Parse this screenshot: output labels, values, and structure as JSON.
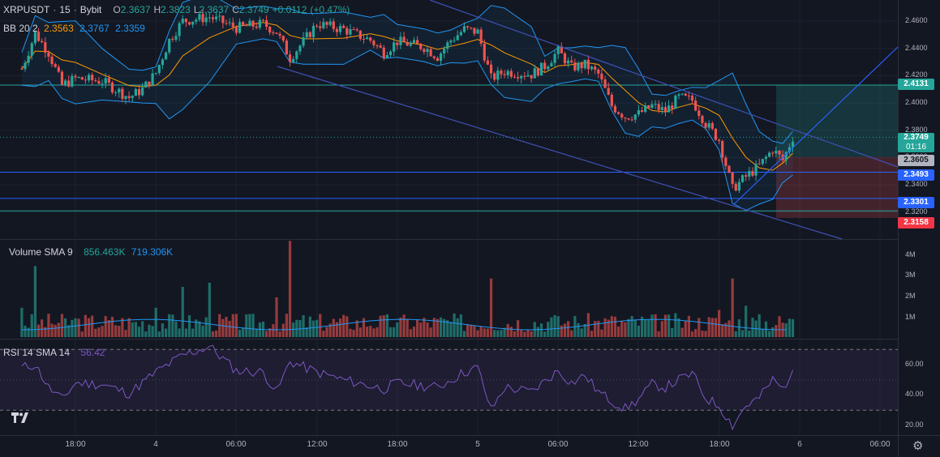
{
  "header": {
    "symbol": "XRPUSDT",
    "interval": "15",
    "exchange": "Bybit",
    "sep": "·",
    "ohlc": {
      "o_label": "O",
      "o": "2.3637",
      "h_label": "H",
      "h": "2.3823",
      "l_label": "L",
      "l": "2.3637",
      "c_label": "C",
      "c": "2.3749",
      "change": "+0.0112",
      "change_pct": "(+0.47%)"
    }
  },
  "bb_legend": {
    "name": "BB 20 2",
    "basis": "2.3563",
    "upper": "2.3767",
    "lower": "2.3359"
  },
  "volume_legend": {
    "name": "Volume SMA 9",
    "value": "856.463K",
    "sma": "719.306K"
  },
  "rsi_legend": {
    "name": "RSI 14 SMA 14",
    "value": "56.42"
  },
  "price_axis": [
    "2.4600",
    "2.4400",
    "2.4200",
    "2.4000",
    "2.3800",
    "2.3600",
    "2.3400",
    "2.3200"
  ],
  "volume_axis": [
    "4M",
    "3M",
    "2M",
    "1M"
  ],
  "rsi_axis": [
    "60.00",
    "40.00",
    "20.00"
  ],
  "time_axis": [
    "18:00",
    "4",
    "06:00",
    "12:00",
    "18:00",
    "5",
    "06:00",
    "12:00",
    "18:00",
    "6",
    "06:00"
  ],
  "price_tags": {
    "tp": "2.4131",
    "last": "2.3749",
    "countdown": "01:16",
    "entry": "2.3605",
    "support1": "2.3493",
    "support2": "2.3301",
    "sl": "2.3158"
  },
  "colors": {
    "bg": "#131722",
    "up": "#26a69a",
    "down": "#ef5350",
    "basis": "#ff9800",
    "band": "#2196f3",
    "rsi": "#7e57c2",
    "grid": "#1e222d",
    "hline": "#2962ff"
  },
  "chart_data": [
    {
      "type": "candlestick",
      "title": "XRPUSDT · 15 · Bybit",
      "interval_minutes": 15,
      "ylim": [
        2.305,
        2.47
      ],
      "x_tick_labels": [
        "18:00",
        "4",
        "06:00",
        "12:00",
        "18:00",
        "5",
        "06:00",
        "12:00",
        "18:00",
        "6",
        "06:00"
      ],
      "close_trace": [
        {
          "t": "Feb 3 14:00",
          "c": 2.425
        },
        {
          "t": "Feb 3 15:00",
          "c": 2.451
        },
        {
          "t": "Feb 3 16:00",
          "c": 2.437
        },
        {
          "t": "Feb 3 17:00",
          "c": 2.413
        },
        {
          "t": "Feb 3 18:00",
          "c": 2.418
        },
        {
          "t": "Feb 3 20:00",
          "c": 2.416
        },
        {
          "t": "Feb 3 22:00",
          "c": 2.404
        },
        {
          "t": "Feb 3 23:00",
          "c": 2.41
        },
        {
          "t": "Feb 4 00:00",
          "c": 2.422
        },
        {
          "t": "Feb 4 01:00",
          "c": 2.446
        },
        {
          "t": "Feb 4 02:00",
          "c": 2.46
        },
        {
          "t": "Feb 4 04:00",
          "c": 2.463
        },
        {
          "t": "Feb 4 06:00",
          "c": 2.455
        },
        {
          "t": "Feb 4 08:00",
          "c": 2.458
        },
        {
          "t": "Feb 4 09:00",
          "c": 2.452
        },
        {
          "t": "Feb 4 10:00",
          "c": 2.433
        },
        {
          "t": "Feb 4 11:00",
          "c": 2.445
        },
        {
          "t": "Feb 4 12:00",
          "c": 2.458
        },
        {
          "t": "Feb 4 14:00",
          "c": 2.454
        },
        {
          "t": "Feb 4 16:00",
          "c": 2.446
        },
        {
          "t": "Feb 4 17:00",
          "c": 2.437
        },
        {
          "t": "Feb 4 18:00",
          "c": 2.445
        },
        {
          "t": "Feb 4 20:00",
          "c": 2.441
        },
        {
          "t": "Feb 4 21:00",
          "c": 2.434
        },
        {
          "t": "Feb 4 22:00",
          "c": 2.446
        },
        {
          "t": "Feb 4 23:00",
          "c": 2.454
        },
        {
          "t": "Feb 5 00:00",
          "c": 2.452
        },
        {
          "t": "Feb 5 01:00",
          "c": 2.418
        },
        {
          "t": "Feb 5 02:00",
          "c": 2.423
        },
        {
          "t": "Feb 5 04:00",
          "c": 2.421
        },
        {
          "t": "Feb 5 05:00",
          "c": 2.427
        },
        {
          "t": "Feb 5 06:00",
          "c": 2.438
        },
        {
          "t": "Feb 5 07:00",
          "c": 2.426
        },
        {
          "t": "Feb 5 08:00",
          "c": 2.428
        },
        {
          "t": "Feb 5 09:00",
          "c": 2.421
        },
        {
          "t": "Feb 5 10:00",
          "c": 2.398
        },
        {
          "t": "Feb 5 11:00",
          "c": 2.39
        },
        {
          "t": "Feb 5 12:00",
          "c": 2.392
        },
        {
          "t": "Feb 5 13:00",
          "c": 2.398
        },
        {
          "t": "Feb 5 14:00",
          "c": 2.394
        },
        {
          "t": "Feb 5 15:00",
          "c": 2.404
        },
        {
          "t": "Feb 5 16:00",
          "c": 2.402
        },
        {
          "t": "Feb 5 17:00",
          "c": 2.385
        },
        {
          "t": "Feb 5 18:00",
          "c": 2.373
        },
        {
          "t": "Feb 5 19:00",
          "c": 2.337
        },
        {
          "t": "Feb 5 20:00",
          "c": 2.346
        },
        {
          "t": "Feb 5 21:00",
          "c": 2.354
        },
        {
          "t": "Feb 5 22:00",
          "c": 2.366
        },
        {
          "t": "Feb 5 22:45",
          "c": 2.358
        },
        {
          "t": "Feb 5 23:30",
          "c": 2.3749
        }
      ],
      "last": {
        "o": 2.3637,
        "h": 2.3823,
        "l": 2.3637,
        "c": 2.3749
      },
      "bollinger": {
        "length": 20,
        "mult": 2,
        "basis": 2.3563,
        "upper": 2.3767,
        "lower": 2.3359
      },
      "horizontal_levels": [
        2.4131,
        2.3493,
        2.3301,
        2.321
      ],
      "position": {
        "entry": 2.3605,
        "take_profit": 2.4131,
        "stop_loss": 2.3158
      }
    },
    {
      "type": "bar",
      "title": "Volume SMA 9",
      "ylim": [
        0,
        4.5
      ],
      "y_unit": "M",
      "last_value": "856.463K",
      "sma_value": "719.306K",
      "volume_trace_M": [
        {
          "t": "Feb 3 14:00",
          "v": 1.4
        },
        {
          "t": "Feb 3 15:00",
          "v": 3.4
        },
        {
          "t": "Feb 3 18:00",
          "v": 0.9
        },
        {
          "t": "Feb 4 00:00",
          "v": 1.4
        },
        {
          "t": "Feb 4 02:00",
          "v": 2.4
        },
        {
          "t": "Feb 4 04:00",
          "v": 2.6
        },
        {
          "t": "Feb 4 09:00",
          "v": 1.9
        },
        {
          "t": "Feb 4 10:00",
          "v": 4.6
        },
        {
          "t": "Feb 4 12:00",
          "v": 0.6
        },
        {
          "t": "Feb 4 18:00",
          "v": 0.7
        },
        {
          "t": "Feb 5 01:00",
          "v": 2.8
        },
        {
          "t": "Feb 5 06:00",
          "v": 1.0
        },
        {
          "t": "Feb 5 10:00",
          "v": 1.0
        },
        {
          "t": "Feb 5 18:00",
          "v": 1.3
        },
        {
          "t": "Feb 5 19:00",
          "v": 2.8
        },
        {
          "t": "Feb 5 20:00",
          "v": 1.5
        },
        {
          "t": "Feb 5 23:30",
          "v": 0.86
        }
      ]
    },
    {
      "type": "line",
      "title": "RSI 14 SMA 14",
      "ylim": [
        15,
        75
      ],
      "band": [
        30,
        70
      ],
      "last_value": 56.42,
      "rsi_trace": [
        {
          "t": "Feb 3 14:00",
          "v": 58
        },
        {
          "t": "Feb 3 15:00",
          "v": 60
        },
        {
          "t": "Feb 3 16:00",
          "v": 45
        },
        {
          "t": "Feb 3 17:00",
          "v": 37
        },
        {
          "t": "Feb 3 18:00",
          "v": 48
        },
        {
          "t": "Feb 3 20:00",
          "v": 47
        },
        {
          "t": "Feb 3 22:00",
          "v": 41
        },
        {
          "t": "Feb 4 00:00",
          "v": 55
        },
        {
          "t": "Feb 4 02:00",
          "v": 66
        },
        {
          "t": "Feb 4 04:00",
          "v": 72
        },
        {
          "t": "Feb 4 06:00",
          "v": 56
        },
        {
          "t": "Feb 4 08:00",
          "v": 55
        },
        {
          "t": "Feb 4 09:00",
          "v": 42
        },
        {
          "t": "Feb 4 10:00",
          "v": 62
        },
        {
          "t": "Feb 4 12:00",
          "v": 55
        },
        {
          "t": "Feb 4 14:00",
          "v": 50
        },
        {
          "t": "Feb 4 17:00",
          "v": 44
        },
        {
          "t": "Feb 4 18:00",
          "v": 48
        },
        {
          "t": "Feb 4 21:00",
          "v": 45
        },
        {
          "t": "Feb 4 23:00",
          "v": 55
        },
        {
          "t": "Feb 5 00:00",
          "v": 58
        },
        {
          "t": "Feb 5 01:00",
          "v": 30
        },
        {
          "t": "Feb 5 02:00",
          "v": 45
        },
        {
          "t": "Feb 5 04:00",
          "v": 42
        },
        {
          "t": "Feb 5 06:00",
          "v": 56
        },
        {
          "t": "Feb 5 07:00",
          "v": 48
        },
        {
          "t": "Feb 5 08:00",
          "v": 53
        },
        {
          "t": "Feb 5 09:00",
          "v": 42
        },
        {
          "t": "Feb 5 10:00",
          "v": 36
        },
        {
          "t": "Feb 5 11:00",
          "v": 31
        },
        {
          "t": "Feb 5 12:00",
          "v": 37
        },
        {
          "t": "Feb 5 13:00",
          "v": 47
        },
        {
          "t": "Feb 5 14:00",
          "v": 45
        },
        {
          "t": "Feb 5 15:00",
          "v": 50
        },
        {
          "t": "Feb 5 16:00",
          "v": 54
        },
        {
          "t": "Feb 5 17:00",
          "v": 38
        },
        {
          "t": "Feb 5 18:00",
          "v": 33
        },
        {
          "t": "Feb 5 19:00",
          "v": 20
        },
        {
          "t": "Feb 5 20:00",
          "v": 33
        },
        {
          "t": "Feb 5 21:00",
          "v": 38
        },
        {
          "t": "Feb 5 22:00",
          "v": 50
        },
        {
          "t": "Feb 5 22:45",
          "v": 44
        },
        {
          "t": "Feb 5 23:30",
          "v": 56.42
        }
      ]
    }
  ]
}
